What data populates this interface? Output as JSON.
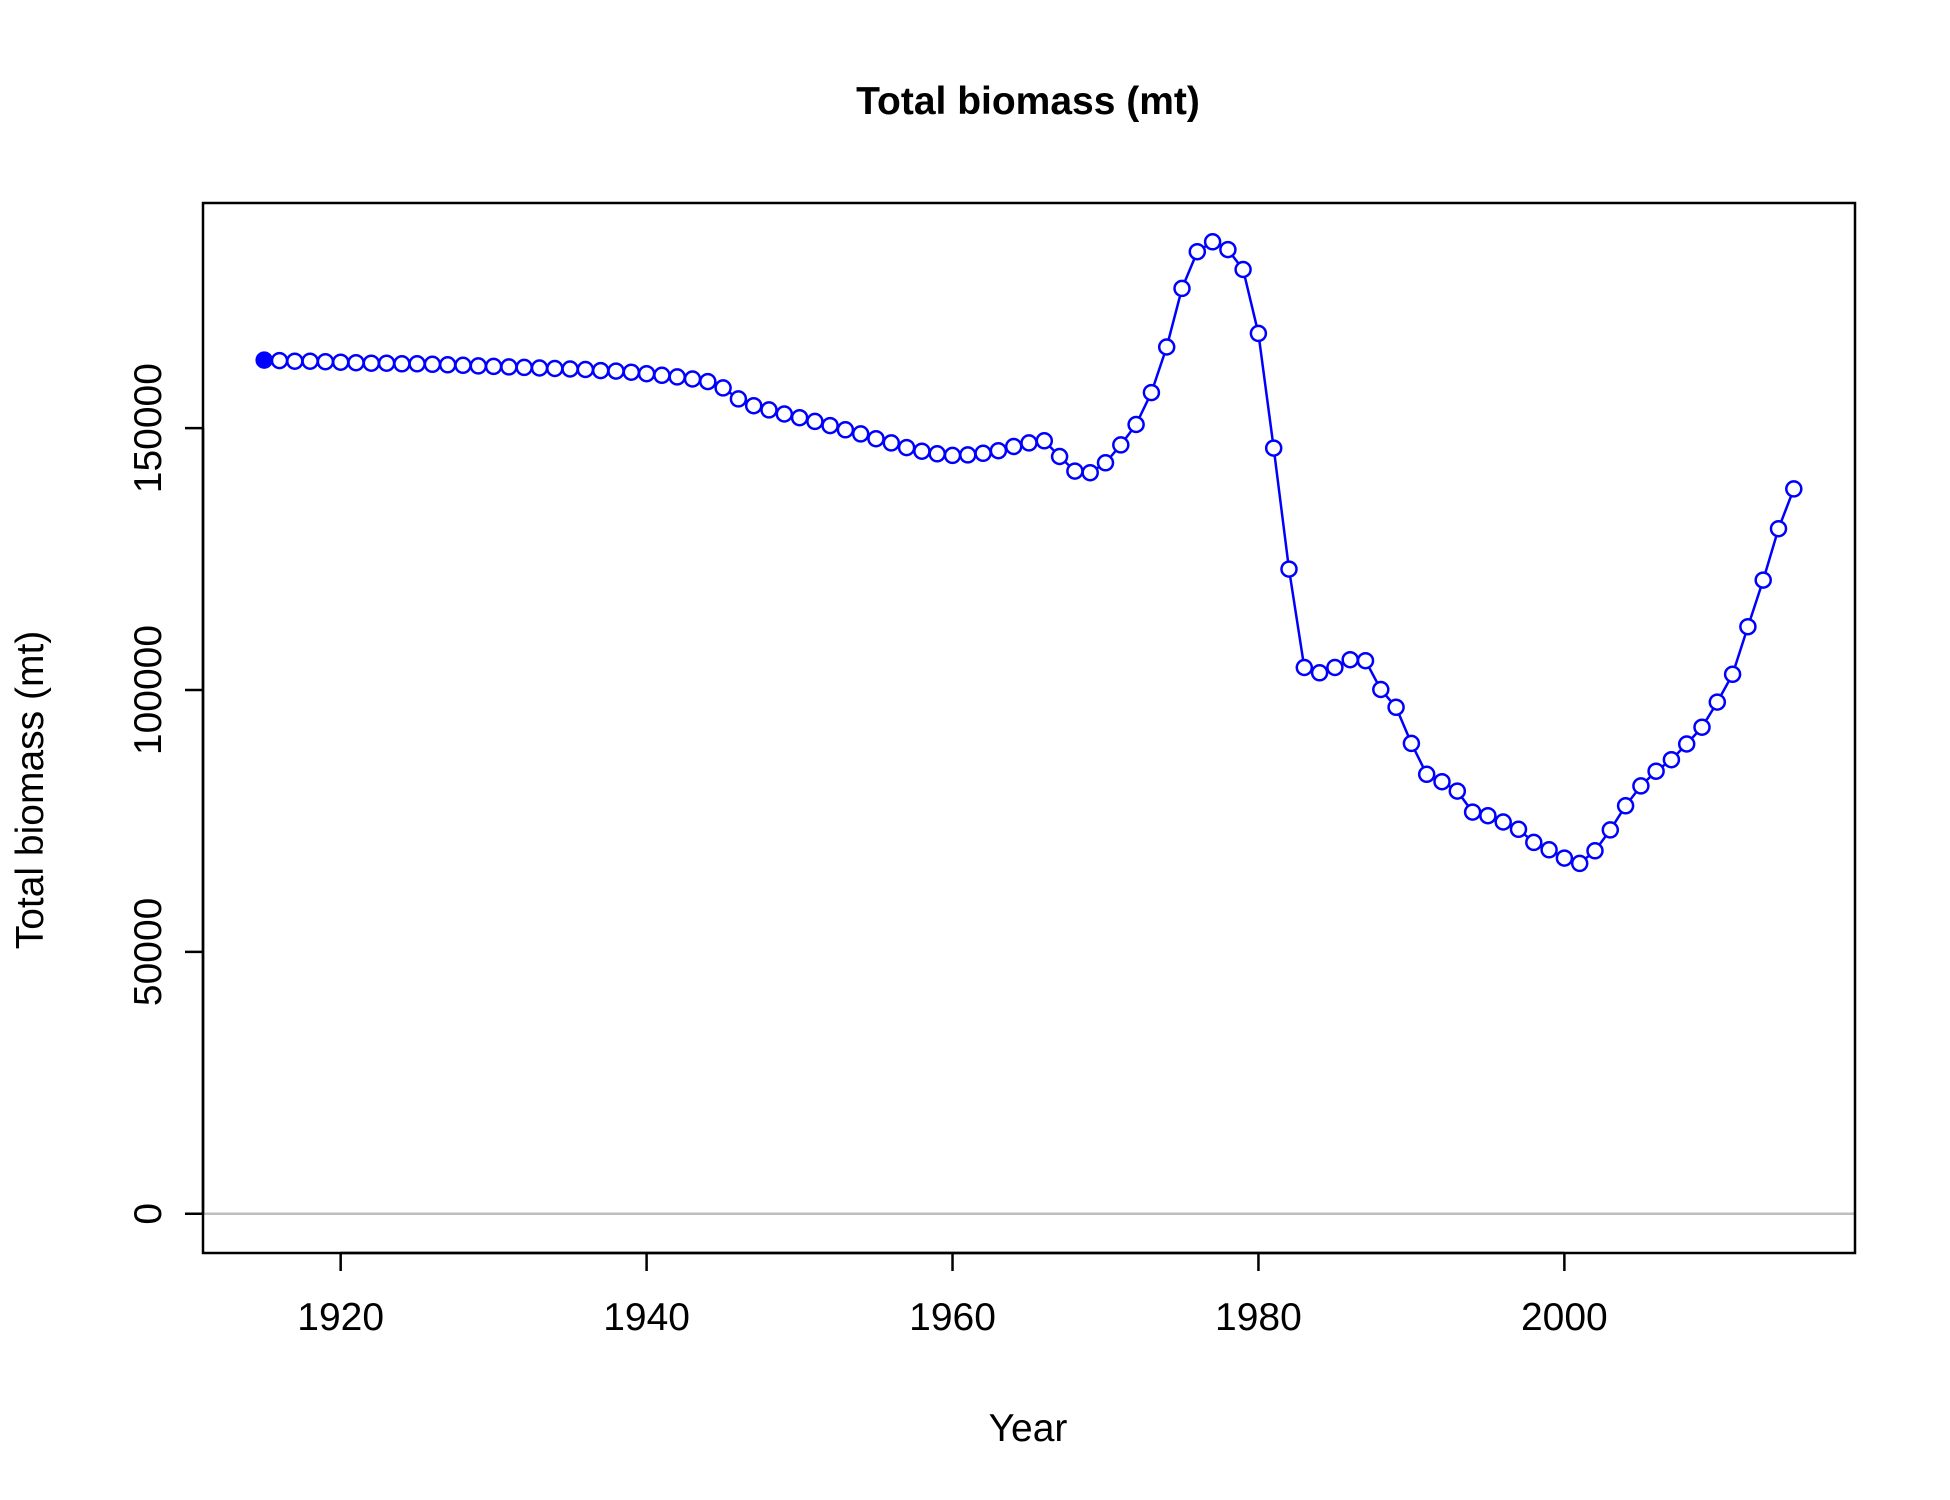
{
  "chart_data": {
    "type": "line",
    "title": "Total biomass (mt)",
    "xlabel": "Year",
    "ylabel": "Total biomass (mt)",
    "xlim": [
      1911,
      2019
    ],
    "ylim": [
      -7500,
      193000
    ],
    "x_ticks": [
      1920,
      1940,
      1960,
      1980,
      2000
    ],
    "x_tick_labels": [
      "1920",
      "1940",
      "1960",
      "1980",
      "2000"
    ],
    "y_ticks": [
      0,
      50000,
      100000,
      150000
    ],
    "y_tick_labels": [
      "0",
      "50000",
      "100000",
      "150000"
    ],
    "reference_line": {
      "y": 0,
      "color": "#bebebe"
    },
    "grid": false,
    "series": [
      {
        "color": "#0000ff",
        "first_point_filled": true,
        "x": [
          1915,
          1916,
          1917,
          1918,
          1919,
          1920,
          1921,
          1922,
          1923,
          1924,
          1925,
          1926,
          1927,
          1928,
          1929,
          1930,
          1931,
          1932,
          1933,
          1934,
          1935,
          1936,
          1937,
          1938,
          1939,
          1940,
          1941,
          1942,
          1943,
          1944,
          1945,
          1946,
          1947,
          1948,
          1949,
          1950,
          1951,
          1952,
          1953,
          1954,
          1955,
          1956,
          1957,
          1958,
          1959,
          1960,
          1961,
          1962,
          1963,
          1964,
          1965,
          1966,
          1967,
          1968,
          1969,
          1970,
          1971,
          1972,
          1973,
          1974,
          1975,
          1976,
          1977,
          1978,
          1979,
          1980,
          1981,
          1982,
          1983,
          1984,
          1985,
          1986,
          1987,
          1988,
          1989,
          1990,
          1991,
          1992,
          1993,
          1994,
          1995,
          1996,
          1997,
          1998,
          1999,
          2000,
          2001,
          2002,
          2003,
          2004,
          2005,
          2006,
          2007,
          2008,
          2009,
          2010,
          2011,
          2012,
          2013,
          2014,
          2015
        ],
        "y": [
          163000,
          162900,
          162800,
          162800,
          162700,
          162600,
          162500,
          162400,
          162400,
          162300,
          162300,
          162200,
          162100,
          162000,
          161900,
          161800,
          161700,
          161600,
          161500,
          161400,
          161300,
          161200,
          161000,
          160900,
          160700,
          160400,
          160100,
          159800,
          159400,
          158900,
          157700,
          155600,
          154300,
          153500,
          152700,
          152000,
          151300,
          150500,
          149700,
          148900,
          148000,
          147200,
          146300,
          145600,
          145100,
          144800,
          144900,
          145200,
          145700,
          146500,
          147200,
          147600,
          144600,
          141800,
          141500,
          143400,
          146800,
          150700,
          156800,
          165500,
          176700,
          183700,
          185600,
          184100,
          180300,
          168100,
          146200,
          123100,
          104300,
          103300,
          104300,
          105800,
          105600,
          100100,
          96700,
          89800,
          83900,
          82500,
          80700,
          76700,
          76000,
          74800,
          73400,
          70900,
          69500,
          67900,
          66900,
          69300,
          73300,
          77900,
          81700,
          84500,
          86700,
          89700,
          92900,
          97700,
          103000,
          112100,
          121000,
          130800,
          138400
        ]
      }
    ]
  }
}
